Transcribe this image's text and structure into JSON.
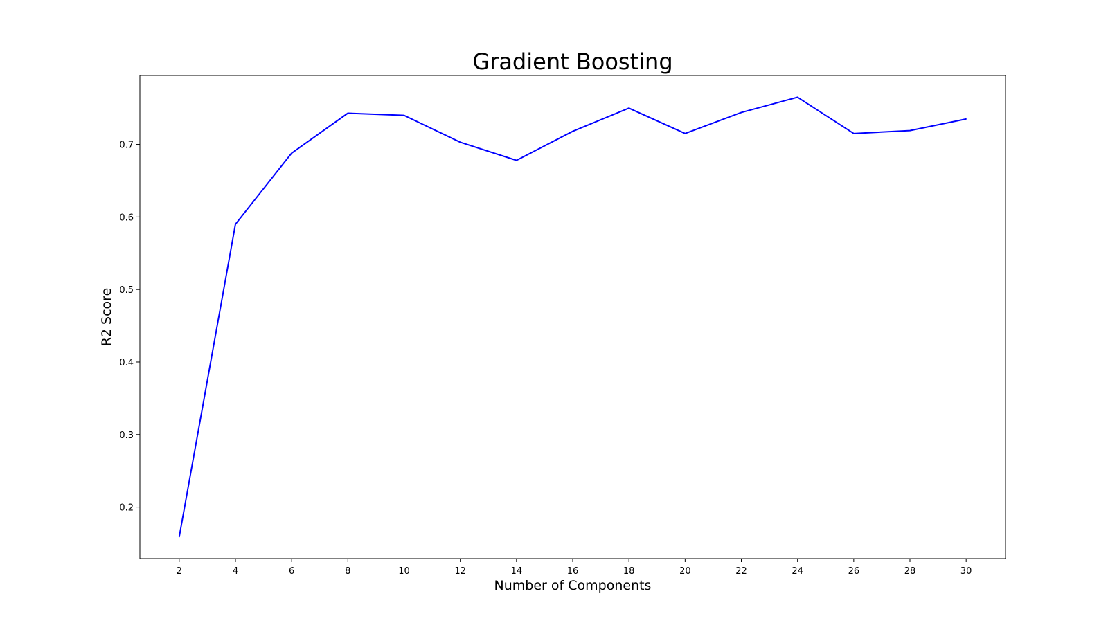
{
  "chart_data": {
    "type": "line",
    "title": "Gradient Boosting",
    "xlabel": "Number of Components",
    "ylabel": "R2 Score",
    "x": [
      2,
      4,
      6,
      8,
      10,
      12,
      14,
      16,
      18,
      20,
      22,
      24,
      26,
      28,
      30
    ],
    "series": [
      {
        "values": [
          0.159,
          0.59,
          0.688,
          0.743,
          0.74,
          0.703,
          0.678,
          0.718,
          0.75,
          0.715,
          0.744,
          0.765,
          0.715,
          0.719,
          0.735
        ],
        "color": "#0000ff"
      }
    ],
    "xticks": [
      2,
      4,
      6,
      8,
      10,
      12,
      14,
      16,
      18,
      20,
      22,
      24,
      26,
      28,
      30
    ],
    "yticks": [
      0.2,
      0.3,
      0.4,
      0.5,
      0.6,
      0.7
    ],
    "xlim": [
      0.6,
      31.4
    ],
    "ylim": [
      0.129,
      0.795
    ],
    "grid": false,
    "legend": "none"
  }
}
